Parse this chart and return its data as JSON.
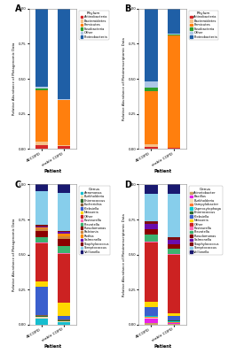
{
  "panel_A": {
    "title": "A",
    "ylabel": "Relative Abundance of Metagenomic Data",
    "xlabel": "Patient",
    "xticks": [
      "AECOPD",
      "stable COPD"
    ],
    "legend_title": "Phylum",
    "legend_labels": [
      "Actinobacteria",
      "Bacteroidetes",
      "Firmicutes",
      "Fusobacteria",
      "Other",
      "Proteobacteria"
    ],
    "colors": [
      "#d62728",
      "#f5c28a",
      "#ff7f0e",
      "#2ca02c",
      "#aec7e8",
      "#1f5fa6"
    ],
    "data": {
      "AECOPD": [
        0.025,
        0.025,
        0.37,
        0.008,
        0.015,
        0.557
      ],
      "stable": [
        0.018,
        0.008,
        0.32,
        0.003,
        0.008,
        0.643
      ]
    }
  },
  "panel_B": {
    "title": "B",
    "ylabel": "Relative Abundance of Metatranscriptomic Data",
    "xlabel": "Patient",
    "xticks": [
      "AECOPD",
      "stable COPD"
    ],
    "legend_title": "Phylum",
    "legend_labels": [
      "Actinobacteria",
      "Bacteroidetes",
      "Firmicutes",
      "Fusobacteria",
      "Other",
      "Proteobacteria"
    ],
    "colors": [
      "#d62728",
      "#f5c28a",
      "#ff7f0e",
      "#2ca02c",
      "#aec7e8",
      "#1f5fa6"
    ],
    "data": {
      "AECOPD": [
        0.015,
        0.02,
        0.38,
        0.025,
        0.04,
        0.52
      ],
      "stable": [
        0.006,
        0.005,
        0.8,
        0.004,
        0.005,
        0.18
      ]
    }
  },
  "panel_C": {
    "title": "C",
    "ylabel": "Relative Abundance of Metagenomic Data",
    "xlabel": "Patient",
    "xticks": [
      "AECOPD",
      "stable COPD"
    ],
    "legend_title": "Genus",
    "legend_labels": [
      "Aeromonas",
      "Burkholderia",
      "Enterococcus",
      "Escherichia",
      "Klebsiella",
      "Neisseria",
      "Other",
      "Pasteurella",
      "Prevotella",
      "Pseudomonas",
      "Ralstonia",
      "Rothia",
      "Salmonella",
      "Staphylococcus",
      "Streptococcus",
      "Veillonella"
    ],
    "colors": [
      "#17becf",
      "#f5deb3",
      "#2d6a2d",
      "#8b5e3c",
      "#3a5fcd",
      "#ffd700",
      "#cc2222",
      "#ff69b4",
      "#3cb371",
      "#8b0000",
      "#cd853f",
      "#ff8c00",
      "#6a0dad",
      "#7f1010",
      "#87ceeb",
      "#191970"
    ],
    "data": {
      "AECOPD": [
        0.045,
        0.01,
        0.005,
        0.01,
        0.2,
        0.04,
        0.27,
        0.005,
        0.04,
        0.04,
        0.02,
        0.01,
        0.005,
        0.01,
        0.24,
        0.05
      ],
      "stable": [
        0.02,
        0.005,
        0.005,
        0.005,
        0.03,
        0.09,
        0.35,
        0.005,
        0.05,
        0.05,
        0.02,
        0.02,
        0.01,
        0.01,
        0.27,
        0.06
      ]
    }
  },
  "panel_D": {
    "title": "D",
    "ylabel": "Relative Abundance of Metatranscriptomic Data",
    "xlabel": "Patient",
    "xticks": [
      "AECOPD",
      "stable COPD"
    ],
    "legend_title": "Genus",
    "legend_labels": [
      "Acinetobacter",
      "Bacillus",
      "Burkholderia",
      "Campylobacter",
      "Capnocytophaga",
      "Enterococcus",
      "Klebsiella",
      "Neisseria",
      "Other",
      "Pasteurella",
      "Prevotella",
      "Pseudomonas",
      "Salmonella",
      "Staphylococcus",
      "Streptococcus",
      "Veillonella"
    ],
    "colors": [
      "#c8a165",
      "#e920e9",
      "#f5deb3",
      "#ff7733",
      "#00ced1",
      "#2d6a2d",
      "#3a5fcd",
      "#ffd700",
      "#cc2222",
      "#ff69b4",
      "#3cb371",
      "#8b0000",
      "#6a0dad",
      "#7f1010",
      "#87ceeb",
      "#191970"
    ],
    "data": {
      "AECOPD": [
        0.01,
        0.035,
        0.005,
        0.005,
        0.005,
        0.005,
        0.06,
        0.04,
        0.42,
        0.005,
        0.05,
        0.04,
        0.04,
        0.02,
        0.19,
        0.065
      ],
      "stable": [
        0.005,
        0.005,
        0.005,
        0.005,
        0.005,
        0.005,
        0.03,
        0.02,
        0.42,
        0.005,
        0.04,
        0.03,
        0.03,
        0.02,
        0.31,
        0.085
      ]
    }
  },
  "bg_color": "#ffffff",
  "panel_bg": "#ffffff",
  "bar_width": 0.55
}
